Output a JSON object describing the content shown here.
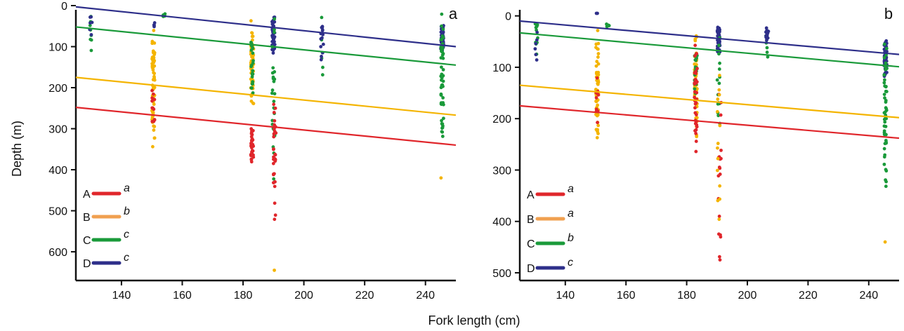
{
  "figure": {
    "xlabel": "Fork length (cm)",
    "ylabel": "Depth (m)"
  },
  "colors": {
    "A": "#e0262b",
    "B": "#f4b400",
    "B_legend": "#f0a050",
    "C": "#1a9a3a",
    "D": "#2e2f8a"
  },
  "chart_data": [
    {
      "type": "scatter",
      "panel_label": "a",
      "xlabel": "Fork length (cm)",
      "ylabel": "Depth (m)",
      "xlim": [
        125,
        250
      ],
      "ylim": [
        670,
        0
      ],
      "xticks": [
        140,
        160,
        180,
        200,
        220,
        240
      ],
      "yticks": [
        0,
        100,
        200,
        300,
        400,
        500,
        600
      ],
      "grid": false,
      "legend_position": "bottom-left",
      "legend": [
        {
          "key": "A",
          "letter": "a"
        },
        {
          "key": "B",
          "letter": "b"
        },
        {
          "key": "C",
          "letter": "c"
        },
        {
          "key": "D",
          "letter": "c"
        }
      ],
      "fits": [
        {
          "key": "A",
          "x": [
            125,
            250
          ],
          "y": [
            248,
            340
          ]
        },
        {
          "key": "B",
          "x": [
            125,
            250
          ],
          "y": [
            175,
            267
          ]
        },
        {
          "key": "C",
          "x": [
            125,
            250
          ],
          "y": [
            52,
            145
          ]
        },
        {
          "key": "D",
          "x": [
            125,
            250
          ],
          "y": [
            3,
            100
          ]
        }
      ],
      "clusters": [
        {
          "x": 130,
          "groups": [
            {
              "key": "C",
              "min": 20,
              "max": 110,
              "n": 8
            },
            {
              "key": "D",
              "min": 15,
              "max": 75,
              "n": 6
            }
          ]
        },
        {
          "x": 150.5,
          "groups": [
            {
              "key": "B",
              "min": 35,
              "max": 345,
              "n": 60
            },
            {
              "key": "A",
              "min": 200,
              "max": 300,
              "n": 12
            },
            {
              "key": "D",
              "min": 40,
              "max": 55,
              "n": 4
            }
          ]
        },
        {
          "x": 154,
          "groups": [
            {
              "key": "C",
              "min": 20,
              "max": 28,
              "n": 6
            }
          ]
        },
        {
          "x": 183,
          "groups": [
            {
              "key": "B",
              "min": 35,
              "max": 255,
              "n": 55
            },
            {
              "key": "C",
              "min": 60,
              "max": 240,
              "n": 22
            },
            {
              "key": "A",
              "min": 290,
              "max": 385,
              "n": 30
            }
          ]
        },
        {
          "x": 190,
          "groups": [
            {
              "key": "D",
              "min": 20,
              "max": 120,
              "n": 45
            },
            {
              "key": "C",
              "min": 20,
              "max": 440,
              "n": 30
            },
            {
              "key": "A",
              "min": 200,
              "max": 530,
              "n": 30
            },
            {
              "key": "B",
              "min": 645,
              "max": 645,
              "n": 1
            }
          ]
        },
        {
          "x": 206,
          "groups": [
            {
              "key": "C",
              "min": 15,
              "max": 210,
              "n": 6
            },
            {
              "key": "D",
              "min": 30,
              "max": 135,
              "n": 14
            }
          ]
        },
        {
          "x": 245.5,
          "groups": [
            {
              "key": "D",
              "min": 45,
              "max": 110,
              "n": 55
            },
            {
              "key": "C",
              "min": 15,
              "max": 345,
              "n": 50
            },
            {
              "key": "B",
              "min": 420,
              "max": 420,
              "n": 1
            }
          ]
        }
      ]
    },
    {
      "type": "scatter",
      "panel_label": "b",
      "xlabel": "Fork length (cm)",
      "ylabel": "Depth (m)",
      "xlim": [
        125,
        250
      ],
      "ylim": [
        515,
        -20
      ],
      "xticks": [
        140,
        160,
        180,
        200,
        220,
        240
      ],
      "yticks": [
        0,
        100,
        200,
        300,
        400,
        500
      ],
      "grid": false,
      "legend_position": "bottom-left",
      "legend": [
        {
          "key": "A",
          "letter": "a"
        },
        {
          "key": "B",
          "letter": "a"
        },
        {
          "key": "C",
          "letter": "b"
        },
        {
          "key": "D",
          "letter": "c"
        }
      ],
      "fits": [
        {
          "key": "A",
          "x": [
            125,
            250
          ],
          "y": [
            175,
            238
          ]
        },
        {
          "key": "B",
          "x": [
            125,
            250
          ],
          "y": [
            135,
            198
          ]
        },
        {
          "key": "C",
          "x": [
            125,
            250
          ],
          "y": [
            33,
            99
          ]
        },
        {
          "key": "D",
          "x": [
            125,
            250
          ],
          "y": [
            10,
            75
          ]
        }
      ],
      "clusters": [
        {
          "x": 130.5,
          "groups": [
            {
              "key": "C",
              "min": 2,
              "max": 75,
              "n": 10
            },
            {
              "key": "D",
              "min": 10,
              "max": 115,
              "n": 6
            }
          ]
        },
        {
          "x": 150.5,
          "groups": [
            {
              "key": "B",
              "min": 25,
              "max": 255,
              "n": 55
            },
            {
              "key": "A",
              "min": 110,
              "max": 225,
              "n": 10
            },
            {
              "key": "D",
              "min": -5,
              "max": -5,
              "n": 2
            }
          ]
        },
        {
          "x": 154,
          "groups": [
            {
              "key": "C",
              "min": 15,
              "max": 23,
              "n": 6
            }
          ]
        },
        {
          "x": 183,
          "groups": [
            {
              "key": "B",
              "min": 25,
              "max": 245,
              "n": 55
            },
            {
              "key": "C",
              "min": 50,
              "max": 160,
              "n": 22
            },
            {
              "key": "A",
              "min": 45,
              "max": 280,
              "n": 35
            }
          ]
        },
        {
          "x": 190.5,
          "groups": [
            {
              "key": "D",
              "min": 15,
              "max": 75,
              "n": 40
            },
            {
              "key": "C",
              "min": 40,
              "max": 250,
              "n": 16
            },
            {
              "key": "A",
              "min": 135,
              "max": 500,
              "n": 20
            },
            {
              "key": "B",
              "min": 100,
              "max": 415,
              "n": 14
            }
          ]
        },
        {
          "x": 206.5,
          "groups": [
            {
              "key": "C",
              "min": 25,
              "max": 90,
              "n": 5
            },
            {
              "key": "D",
              "min": 20,
              "max": 50,
              "n": 14
            }
          ]
        },
        {
          "x": 245.5,
          "groups": [
            {
              "key": "D",
              "min": 40,
              "max": 125,
              "n": 55
            },
            {
              "key": "C",
              "min": 35,
              "max": 345,
              "n": 50
            },
            {
              "key": "B",
              "min": 440,
              "max": 440,
              "n": 1
            }
          ]
        }
      ]
    }
  ]
}
